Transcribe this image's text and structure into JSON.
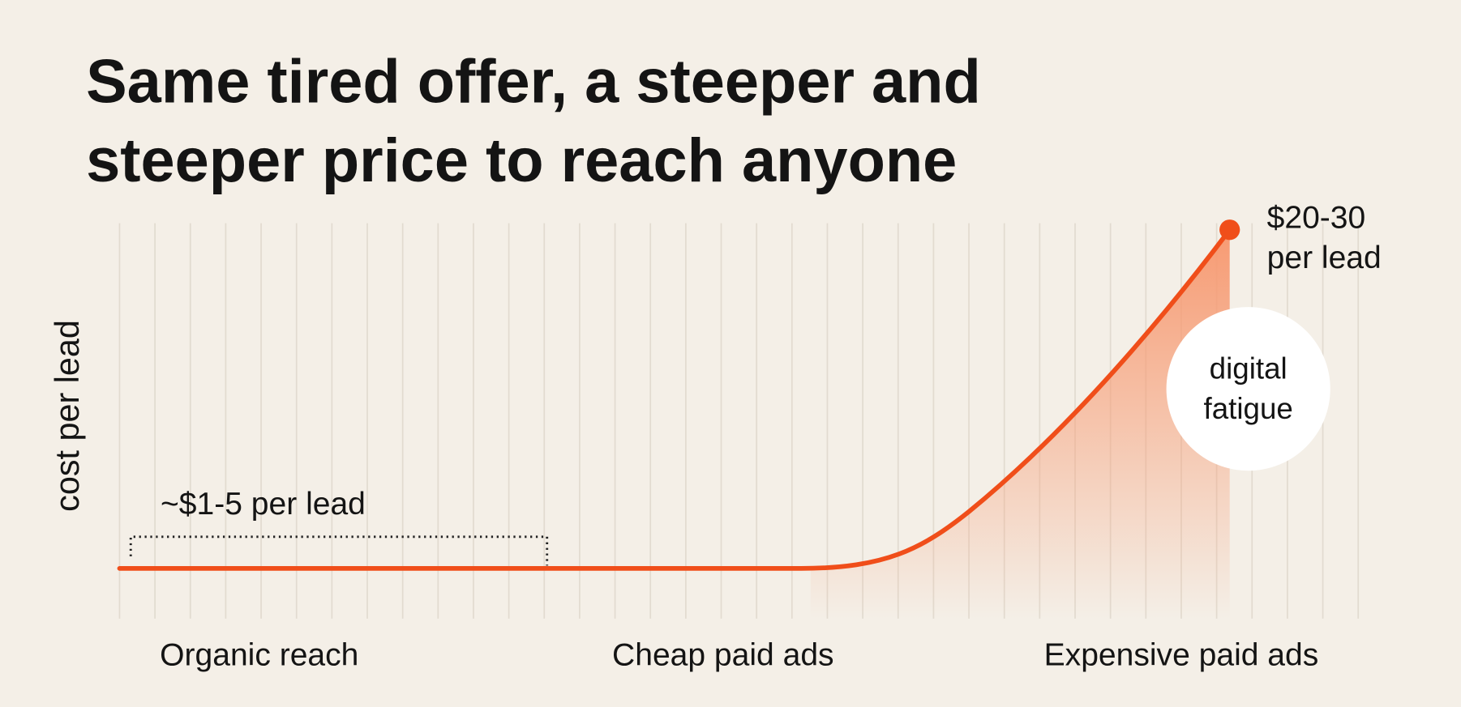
{
  "chart_data": {
    "type": "line",
    "title": [
      "Same tired offer, a steeper and",
      "steeper price to reach anyone"
    ],
    "ylabel": "cost per lead",
    "categories": [
      "Organic reach",
      "Cheap paid ads",
      "Expensive paid ads"
    ],
    "annotations": {
      "low": "~$1-5 per lead",
      "high": [
        "$20-30",
        "per lead"
      ],
      "badge": [
        "digital",
        "fatigue"
      ]
    },
    "color": "#f04e1a"
  }
}
